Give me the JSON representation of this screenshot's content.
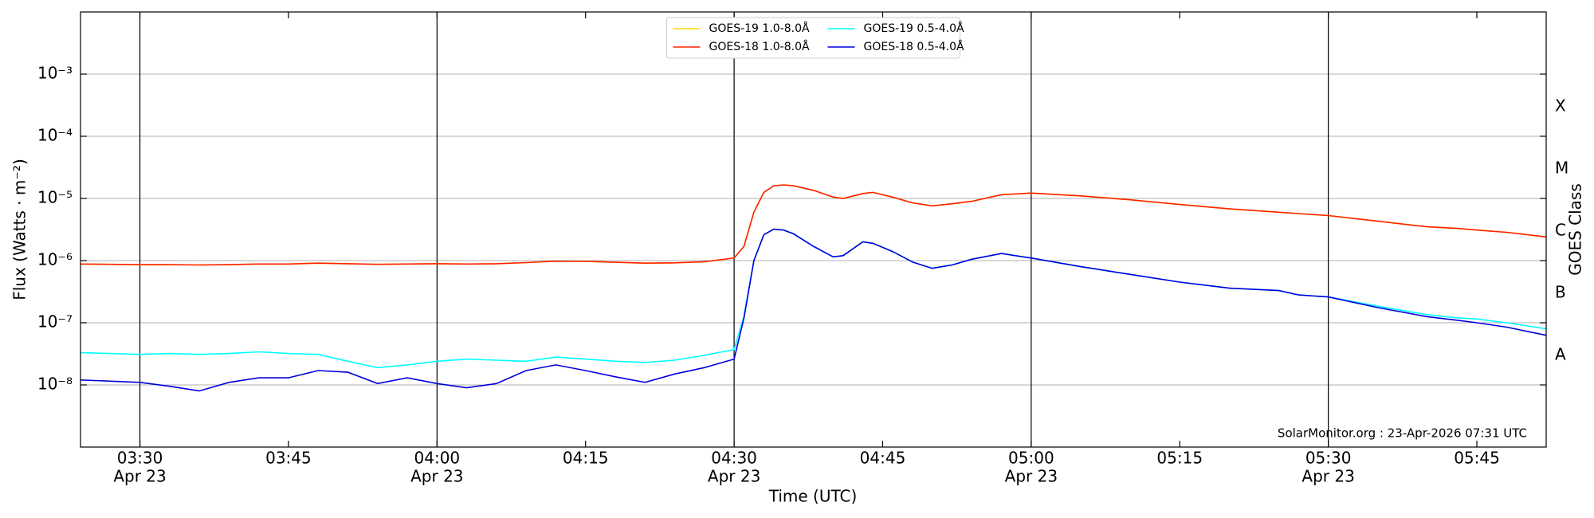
{
  "chart_data": {
    "type": "line",
    "ylabel": "Flux (Watts · m⁻²)",
    "xlabel": "Time (UTC)",
    "y2label": "GOES Class",
    "footer": "SolarMonitor.org : 23-Apr-2026 07:31 UTC",
    "log_y": true,
    "grid": true,
    "legend": "upper center",
    "xlim": [
      "03:24",
      "05:52"
    ],
    "ylim": [
      1e-09,
      0.01
    ],
    "xticks": [
      "03:30",
      "03:45",
      "04:00",
      "04:15",
      "04:30",
      "04:45",
      "05:00",
      "05:15",
      "05:30",
      "05:45"
    ],
    "xtick_dates": [
      "Apr 23",
      null,
      "Apr 23",
      null,
      "Apr 23",
      null,
      "Apr 23",
      null,
      "Apr 23",
      null
    ],
    "vlines": [
      "03:30",
      "04:00",
      "04:30",
      "05:00",
      "05:30"
    ],
    "yticks": [
      {
        "value": 1e-08,
        "label": "10⁻⁸"
      },
      {
        "value": 1e-07,
        "label": "10⁻⁷"
      },
      {
        "value": 1e-06,
        "label": "10⁻⁶"
      },
      {
        "value": 1e-05,
        "label": "10⁻⁵"
      },
      {
        "value": 0.0001,
        "label": "10⁻⁴"
      },
      {
        "value": 0.001,
        "label": "10⁻³"
      }
    ],
    "y2ticks": [
      {
        "value": 3e-08,
        "label": "A"
      },
      {
        "value": 3e-07,
        "label": "B"
      },
      {
        "value": 3e-06,
        "label": "C"
      },
      {
        "value": 3e-05,
        "label": "M"
      },
      {
        "value": 0.0003,
        "label": "X"
      }
    ],
    "x": [
      "03:24",
      "03:27",
      "03:30",
      "03:33",
      "03:36",
      "03:39",
      "03:42",
      "03:45",
      "03:48",
      "03:51",
      "03:54",
      "03:57",
      "04:00",
      "04:03",
      "04:06",
      "04:09",
      "04:12",
      "04:15",
      "04:18",
      "04:21",
      "04:24",
      "04:27",
      "04:30",
      "04:31",
      "04:32",
      "04:33",
      "04:34",
      "04:35",
      "04:36",
      "04:38",
      "04:40",
      "04:41",
      "04:43",
      "04:44",
      "04:46",
      "04:48",
      "04:50",
      "04:52",
      "04:54",
      "04:57",
      "05:00",
      "05:05",
      "05:10",
      "05:15",
      "05:20",
      "05:25",
      "05:27",
      "05:30",
      "05:35",
      "05:40",
      "05:43",
      "05:45",
      "05:48",
      "05:52"
    ],
    "series": [
      {
        "name": "GOES-19 1.0-8.0Å",
        "color": "#ffd700",
        "values": [
          8.8e-07,
          8.7e-07,
          8.6e-07,
          8.6e-07,
          8.5e-07,
          8.6e-07,
          8.8e-07,
          8.8e-07,
          9.1e-07,
          8.9e-07,
          8.7e-07,
          8.8e-07,
          8.9e-07,
          8.8e-07,
          8.9e-07,
          9.3e-07,
          9.8e-07,
          9.7e-07,
          9.4e-07,
          9.1e-07,
          9.2e-07,
          9.6e-07,
          1.1e-06,
          1.7e-06,
          6e-06,
          1.25e-05,
          1.6e-05,
          1.65e-05,
          1.6e-05,
          1.35e-05,
          1.05e-05,
          1e-05,
          1.2e-05,
          1.25e-05,
          1.05e-05,
          8.5e-06,
          7.6e-06,
          8.2e-06,
          9e-06,
          1.15e-05,
          1.22e-05,
          1.1e-05,
          9.5e-06,
          8e-06,
          6.8e-06,
          6e-06,
          5.7e-06,
          5.3e-06,
          4.3e-06,
          3.5e-06,
          3.3e-06,
          3.1e-06,
          2.85e-06,
          2.4e-06
        ]
      },
      {
        "name": "GOES-18 1.0-8.0Å",
        "color": "#ff2200",
        "values": [
          8.8e-07,
          8.7e-07,
          8.6e-07,
          8.6e-07,
          8.5e-07,
          8.6e-07,
          8.8e-07,
          8.8e-07,
          9.1e-07,
          8.9e-07,
          8.7e-07,
          8.8e-07,
          8.9e-07,
          8.8e-07,
          8.9e-07,
          9.3e-07,
          9.8e-07,
          9.7e-07,
          9.4e-07,
          9.1e-07,
          9.2e-07,
          9.6e-07,
          1.1e-06,
          1.7e-06,
          6e-06,
          1.25e-05,
          1.6e-05,
          1.65e-05,
          1.6e-05,
          1.35e-05,
          1.05e-05,
          1e-05,
          1.2e-05,
          1.25e-05,
          1.05e-05,
          8.5e-06,
          7.6e-06,
          8.2e-06,
          9e-06,
          1.15e-05,
          1.22e-05,
          1.1e-05,
          9.5e-06,
          8e-06,
          6.8e-06,
          6e-06,
          5.7e-06,
          5.3e-06,
          4.3e-06,
          3.5e-06,
          3.3e-06,
          3.1e-06,
          2.85e-06,
          2.4e-06
        ]
      },
      {
        "name": "GOES-19 0.5-4.0Å",
        "color": "#00ffff",
        "values": [
          3.3e-08,
          3.2e-08,
          3.1e-08,
          3.2e-08,
          3.1e-08,
          3.2e-08,
          3.4e-08,
          3.2e-08,
          3.1e-08,
          2.4e-08,
          1.9e-08,
          2.1e-08,
          2.4e-08,
          2.6e-08,
          2.5e-08,
          2.4e-08,
          2.8e-08,
          2.6e-08,
          2.4e-08,
          2.3e-08,
          2.5e-08,
          3e-08,
          3.7e-08,
          1.3e-07,
          1e-06,
          2.6e-06,
          3.2e-06,
          3.1e-06,
          2.7e-06,
          1.7e-06,
          1.15e-06,
          1.2e-06,
          2e-06,
          1.9e-06,
          1.4e-06,
          9.5e-07,
          7.5e-07,
          8.5e-07,
          1.05e-06,
          1.3e-06,
          1.1e-06,
          8e-07,
          6e-07,
          4.5e-07,
          3.6e-07,
          3.3e-07,
          2.8e-07,
          2.6e-07,
          1.85e-07,
          1.35e-07,
          1.2e-07,
          1.15e-07,
          1e-07,
          8e-08
        ]
      },
      {
        "name": "GOES-18 0.5-4.0Å",
        "color": "#0000dd",
        "values": [
          1.2e-08,
          1.15e-08,
          1.1e-08,
          9.5e-09,
          8e-09,
          1.1e-08,
          1.3e-08,
          1.3e-08,
          1.7e-08,
          1.6e-08,
          1.05e-08,
          1.3e-08,
          1.05e-08,
          9e-09,
          1.05e-08,
          1.7e-08,
          2.1e-08,
          1.7e-08,
          1.35e-08,
          1.1e-08,
          1.5e-08,
          1.9e-08,
          2.6e-08,
          1.2e-07,
          1e-06,
          2.6e-06,
          3.2e-06,
          3.1e-06,
          2.7e-06,
          1.7e-06,
          1.15e-06,
          1.2e-06,
          2e-06,
          1.9e-06,
          1.4e-06,
          9.5e-07,
          7.5e-07,
          8.5e-07,
          1.05e-06,
          1.3e-06,
          1.1e-06,
          8e-07,
          6e-07,
          4.5e-07,
          3.6e-07,
          3.3e-07,
          2.8e-07,
          2.6e-07,
          1.75e-07,
          1.25e-07,
          1.1e-07,
          1e-07,
          8.5e-08,
          6.3e-08
        ]
      }
    ]
  }
}
